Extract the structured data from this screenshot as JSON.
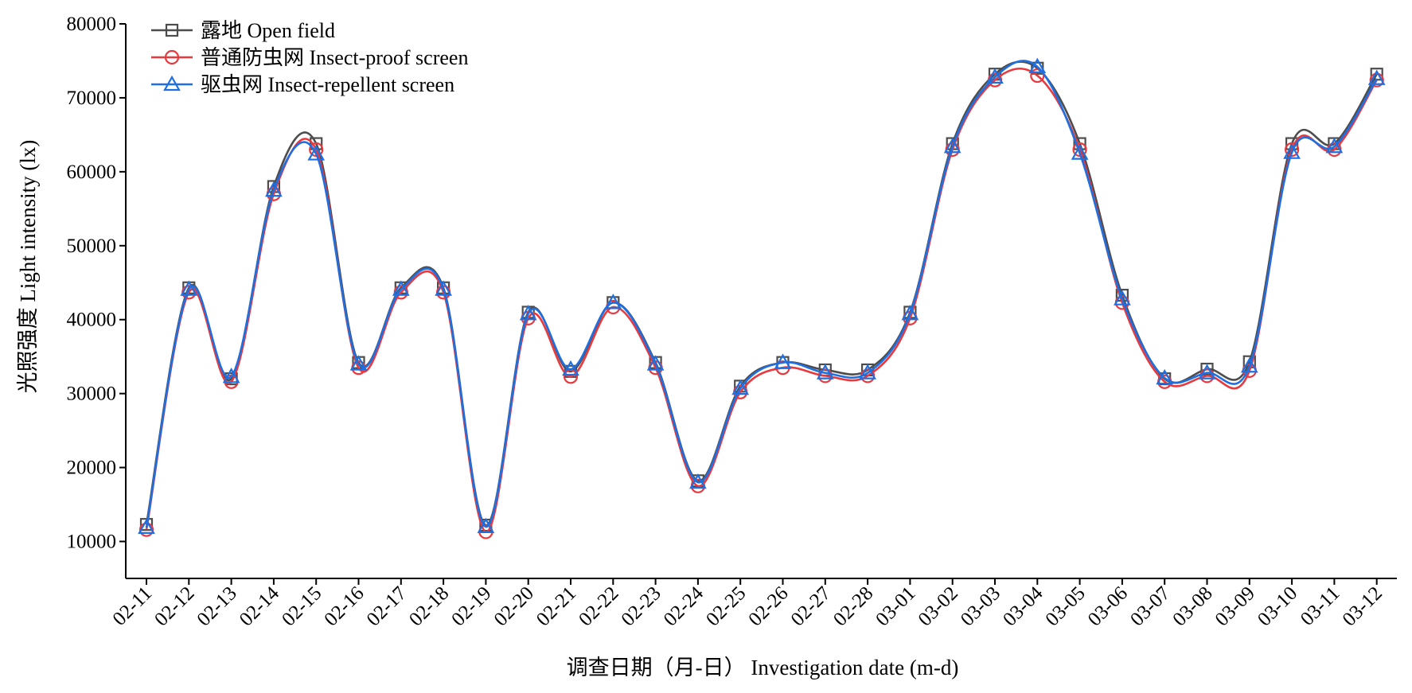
{
  "chart_data": {
    "type": "line",
    "title": "",
    "xlabel": "调查日期（月-日） Investigation date (m-d)",
    "ylabel": "光照强度 Light intensity (lx)",
    "ylim": [
      5000,
      80000
    ],
    "yticks": [
      10000,
      20000,
      30000,
      40000,
      50000,
      60000,
      70000,
      80000
    ],
    "grid": false,
    "legend_position": "top-left",
    "smooth": true,
    "categories": [
      "02-11",
      "02-12",
      "02-13",
      "02-14",
      "02-15",
      "02-16",
      "02-17",
      "02-18",
      "02-19",
      "02-20",
      "02-21",
      "02-22",
      "02-23",
      "02-24",
      "02-25",
      "02-26",
      "02-27",
      "02-28",
      "03-01",
      "03-02",
      "03-03",
      "03-04",
      "03-05",
      "03-06",
      "03-07",
      "03-08",
      "03-09",
      "03-10",
      "03-11",
      "03-12"
    ],
    "series": [
      {
        "name": "露地 Open field",
        "marker": "square",
        "color": "#4d4d4d",
        "values": [
          12300,
          44300,
          32000,
          58000,
          63800,
          34200,
          44300,
          44300,
          12200,
          41000,
          33000,
          42300,
          34200,
          18200,
          31000,
          34200,
          33200,
          33200,
          41000,
          63800,
          73200,
          74000,
          63800,
          43300,
          32000,
          33300,
          34300,
          63800,
          63800,
          73200
        ]
      },
      {
        "name": "普通防虫网 Insect-proof screen",
        "marker": "circle",
        "color": "#e8393f",
        "values": [
          11600,
          43700,
          31600,
          57000,
          63000,
          33500,
          43700,
          43700,
          11300,
          40200,
          32300,
          41700,
          33500,
          17500,
          30200,
          33500,
          32400,
          32400,
          40200,
          63000,
          72400,
          73000,
          63000,
          42300,
          31600,
          32400,
          33100,
          63000,
          63000,
          72400
        ]
      },
      {
        "name": "驱虫网 Insect-repellent screen",
        "marker": "triangle",
        "color": "#1f6fe0",
        "values": [
          11900,
          44100,
          32300,
          57500,
          62400,
          34000,
          44100,
          44100,
          12000,
          40800,
          33300,
          42300,
          34000,
          18000,
          30700,
          34200,
          32800,
          32800,
          40800,
          63400,
          72800,
          74200,
          62500,
          42800,
          32100,
          32800,
          33700,
          62600,
          63400,
          72600
        ]
      }
    ]
  }
}
